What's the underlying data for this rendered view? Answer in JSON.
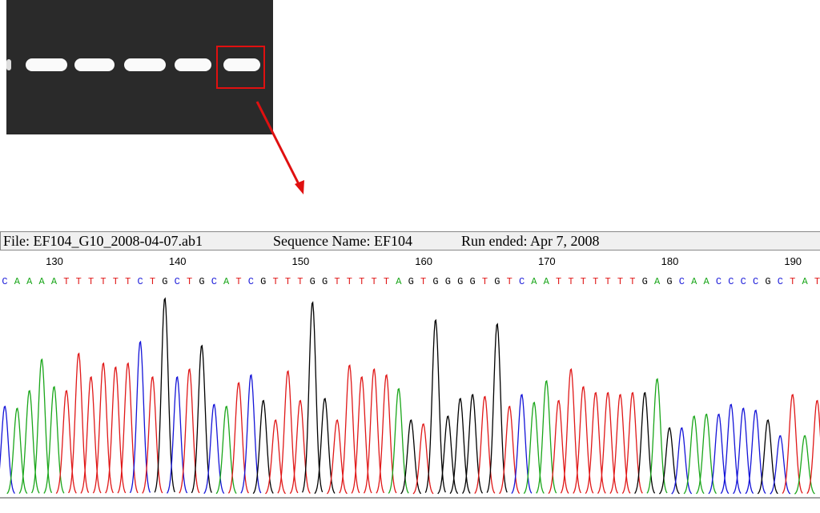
{
  "header": {
    "file": "File: EF104_G10_2008-04-07.ab1",
    "sequence_name": "Sequence Name: EF104",
    "run_ended": "Run ended: Apr 7, 2008"
  },
  "positions": [
    130,
    140,
    150,
    160,
    170,
    180,
    190
  ],
  "sequence": [
    "C",
    "A",
    "A",
    "A",
    "A",
    "T",
    "T",
    "T",
    "T",
    "T",
    "T",
    "C",
    "T",
    "G",
    "C",
    "T",
    "G",
    "C",
    "A",
    "T",
    "C",
    "G",
    "T",
    "T",
    "T",
    "G",
    "G",
    "T",
    "T",
    "T",
    "T",
    "T",
    "A",
    "G",
    "T",
    "G",
    "G",
    "G",
    "G",
    "T",
    "G",
    "T",
    "C",
    "A",
    "A",
    "T",
    "T",
    "T",
    "T",
    "T",
    "T",
    "T",
    "G",
    "A",
    "G",
    "C",
    "A",
    "A",
    "C",
    "C",
    "C",
    "C",
    "G",
    "C",
    "T",
    "A",
    "T"
  ],
  "base_colors": {
    "A": "#1aa61a",
    "C": "#1414d8",
    "G": "#000000",
    "T": "#e01818"
  },
  "trace": {
    "peak_heights": [
      45,
      44,
      53,
      69,
      55,
      53,
      72,
      60,
      67,
      65,
      67,
      78,
      60,
      100,
      60,
      64,
      76,
      46,
      45,
      57,
      61,
      48,
      38,
      63,
      48,
      98,
      49,
      38,
      66,
      60,
      64,
      61,
      54,
      38,
      36,
      89,
      40,
      49,
      51,
      50,
      87,
      45,
      51,
      47,
      58,
      48,
      64,
      55,
      52,
      52,
      51,
      52,
      52,
      59,
      34,
      34,
      40,
      41,
      41,
      46,
      44,
      43,
      38,
      30,
      51,
      30,
      48
    ]
  }
}
